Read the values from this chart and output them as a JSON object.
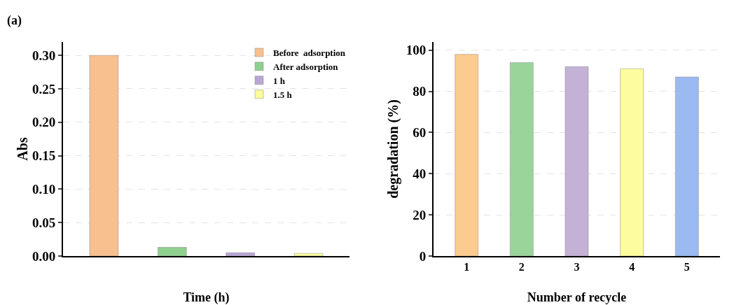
{
  "chart_data": [
    {
      "type": "bar",
      "title": "(a)",
      "xlabel": "Time (h)",
      "ylabel": "Abs",
      "categories": [
        null,
        null,
        null,
        null
      ],
      "series": [
        {
          "name": "Before  adsorption",
          "color": "#f9c08f",
          "values": [
            0.3,
            null,
            null,
            null
          ]
        },
        {
          "name": "After adsorption",
          "color": "#8fd08f",
          "values": [
            null,
            0.013,
            null,
            null
          ]
        },
        {
          "name": "1 h",
          "color": "#b9a6d6",
          "values": [
            null,
            null,
            0.005,
            null
          ]
        },
        {
          "name": "1.5 h",
          "color": "#fcfc9c",
          "values": [
            null,
            null,
            null,
            0.004
          ]
        }
      ],
      "ylim": [
        0,
        0.32
      ],
      "yticks": [
        {
          "value": 0,
          "label": "0.00"
        },
        {
          "value": 0.05,
          "label": "0.05"
        },
        {
          "value": 0.1,
          "label": "0.10"
        },
        {
          "value": 0.15,
          "label": "0.15"
        },
        {
          "value": 0.2,
          "label": "0.20"
        },
        {
          "value": 0.25,
          "label": "0.25"
        },
        {
          "value": 0.3,
          "label": "0.30"
        }
      ],
      "grid": "y",
      "legend": "top right"
    },
    {
      "type": "bar",
      "xlabel": "Number of recycle",
      "ylabel": "degradation (%)",
      "categories": [
        "1",
        "2",
        "3",
        "4",
        "5"
      ],
      "values": [
        98,
        94,
        92,
        91,
        87
      ],
      "colors": [
        "#fccb8f",
        "#9ad49a",
        "#c4b2d6",
        "#fdfd9f",
        "#9bbaf2"
      ],
      "ylim": [
        0,
        104
      ],
      "yticks": [
        0,
        20,
        40,
        60,
        80,
        100
      ],
      "grid": "y"
    }
  ]
}
